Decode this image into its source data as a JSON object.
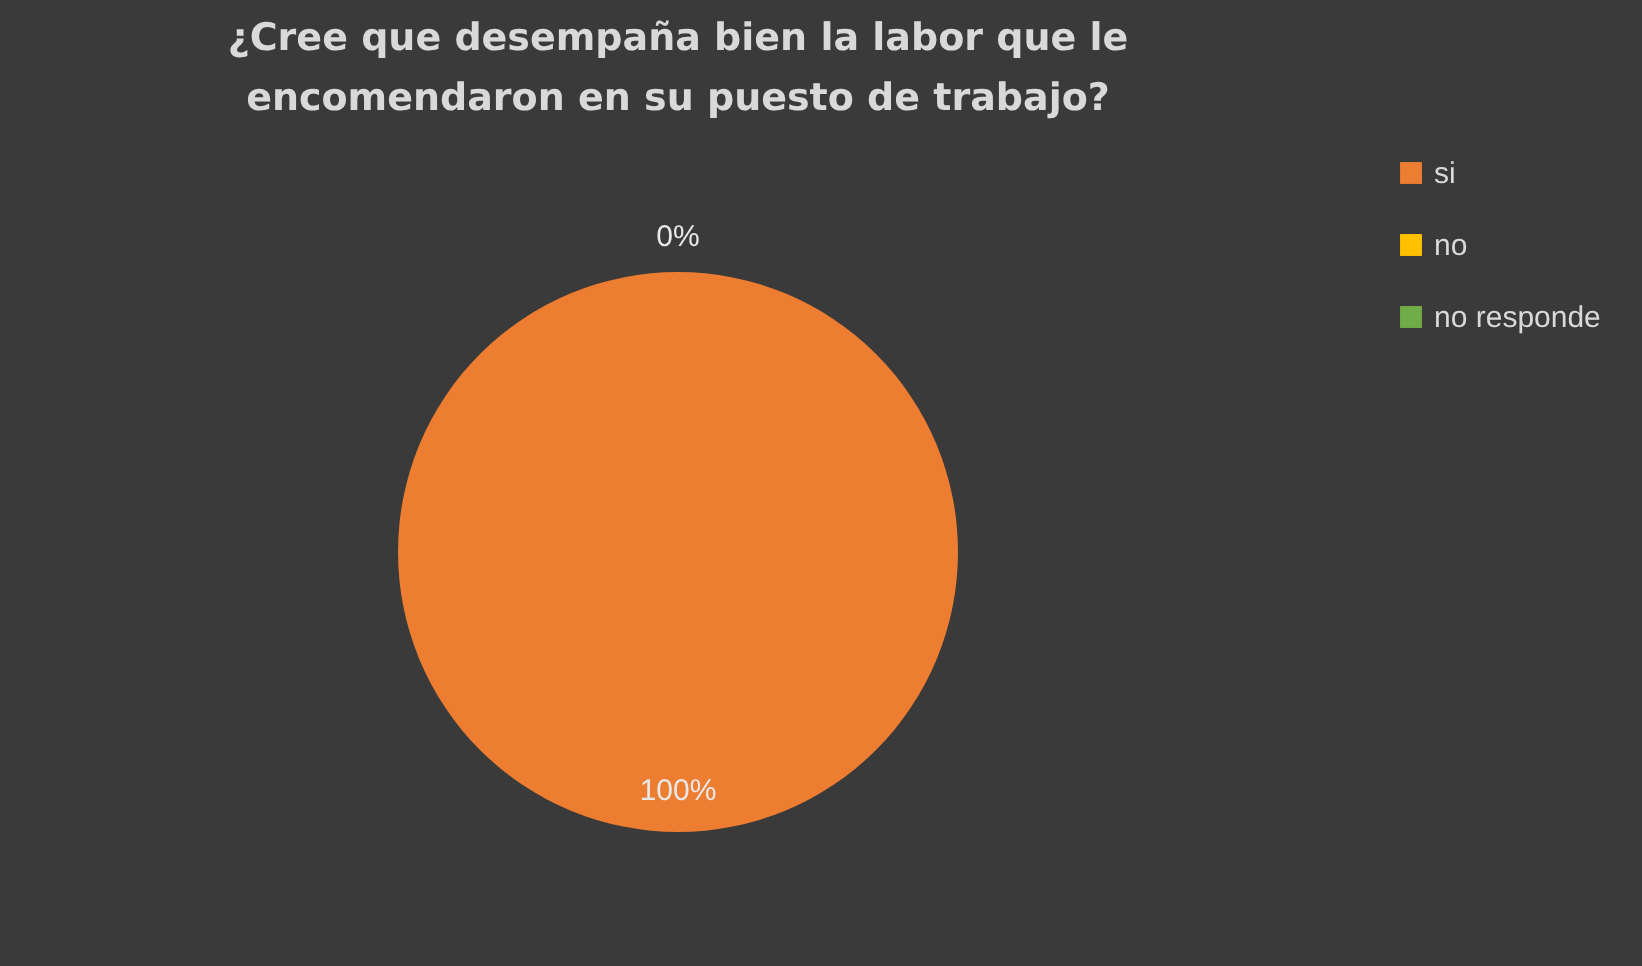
{
  "chart_data": {
    "type": "pie",
    "title": "¿Cree que desempaña bien la labor que le\nencomendaron en su puesto de trabajo?",
    "categories": [
      "si",
      "no",
      "no responde"
    ],
    "values": [
      100,
      0,
      0
    ],
    "colors": [
      "#ed7d31",
      "#ffc000",
      "#70ad47"
    ],
    "value_labels": [
      "100%",
      "0%",
      null
    ],
    "legend": "right"
  }
}
